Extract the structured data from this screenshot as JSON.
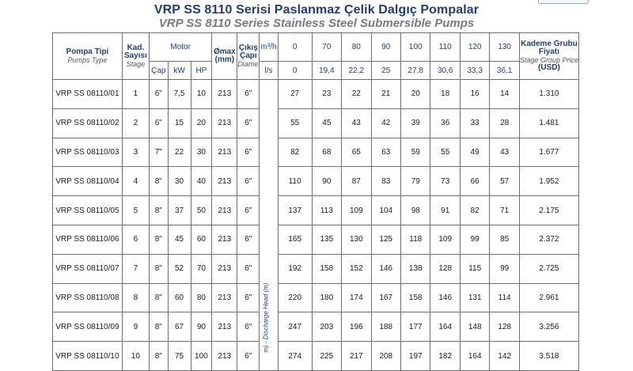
{
  "title_tr": "VRP SS 8110 Serisi Paslanmaz Çelik Dalgıç Pompalar",
  "title_en": "VRP SS 8110 Series Stainless Steel Submersible Pumps",
  "headers": {
    "pump_type": "Pompa Tipi",
    "pump_type_en": "Pumps Type",
    "stage_count_1": "Kad.",
    "stage_count_2": "Sayısı",
    "stage_count_en": "Stage",
    "motor": "Motor",
    "cap": "Çap",
    "kw": "kW",
    "hp": "HP",
    "omax_1": "Ømax",
    "omax_2": "(mm)",
    "discharge_1": "Çıkış",
    "discharge_2": "Çapı",
    "discharge_en": "Diameter",
    "unit_m3h": "m³/h",
    "unit_ls": "l/s",
    "head_label": "m) - Discharge Head (m)",
    "price_1": "Kademe Grubu",
    "price_2": "Fiyatı",
    "price_en": "Stage Group Price",
    "price_unit": "(USD)"
  },
  "flow_m3h": [
    "0",
    "70",
    "80",
    "90",
    "100",
    "110",
    "120",
    "130"
  ],
  "flow_ls": [
    "0",
    "19,4",
    "22,2",
    "25",
    "27,8",
    "30,6",
    "33,3",
    "36,1"
  ],
  "rows": [
    {
      "type": "VRP SS 08110/01",
      "stage": "1",
      "cap": "6\"",
      "kw": "7,5",
      "hp": "10",
      "omax": "213",
      "discharge": "6\"",
      "heads": [
        "27",
        "23",
        "22",
        "21",
        "20",
        "18",
        "16",
        "14"
      ],
      "price": "1.310"
    },
    {
      "type": "VRP SS 08110/02",
      "stage": "2",
      "cap": "6\"",
      "kw": "15",
      "hp": "20",
      "omax": "213",
      "discharge": "6\"",
      "heads": [
        "55",
        "45",
        "43",
        "42",
        "39",
        "36",
        "33",
        "28"
      ],
      "price": "1.481"
    },
    {
      "type": "VRP SS 08110/03",
      "stage": "3",
      "cap": "7\"",
      "kw": "22",
      "hp": "30",
      "omax": "213",
      "discharge": "6\"",
      "heads": [
        "82",
        "68",
        "65",
        "63",
        "59",
        "55",
        "49",
        "43"
      ],
      "price": "1.677"
    },
    {
      "type": "VRP SS 08110/04",
      "stage": "4",
      "cap": "8\"",
      "kw": "30",
      "hp": "40",
      "omax": "213",
      "discharge": "6\"",
      "heads": [
        "110",
        "90",
        "87",
        "83",
        "79",
        "73",
        "66",
        "57"
      ],
      "price": "1.952"
    },
    {
      "type": "VRP SS 08110/05",
      "stage": "5",
      "cap": "8\"",
      "kw": "37",
      "hp": "50",
      "omax": "213",
      "discharge": "6\"",
      "heads": [
        "137",
        "113",
        "109",
        "104",
        "98",
        "91",
        "82",
        "71"
      ],
      "price": "2.175"
    },
    {
      "type": "VRP SS 08110/06",
      "stage": "6",
      "cap": "8\"",
      "kw": "45",
      "hp": "60",
      "omax": "213",
      "discharge": "6\"",
      "heads": [
        "165",
        "135",
        "130",
        "125",
        "118",
        "109",
        "99",
        "85"
      ],
      "price": "2.372"
    },
    {
      "type": "VRP SS 08110/07",
      "stage": "7",
      "cap": "8\"",
      "kw": "52",
      "hp": "70",
      "omax": "213",
      "discharge": "6\"",
      "heads": [
        "192",
        "158",
        "152",
        "146",
        "138",
        "128",
        "115",
        "99"
      ],
      "price": "2.725"
    },
    {
      "type": "VRP SS 08110/08",
      "stage": "8",
      "cap": "8\"",
      "kw": "60",
      "hp": "80",
      "omax": "213",
      "discharge": "6\"",
      "heads": [
        "220",
        "180",
        "174",
        "167",
        "158",
        "146",
        "131",
        "114"
      ],
      "price": "2.961"
    },
    {
      "type": "VRP SS 08110/09",
      "stage": "9",
      "cap": "8\"",
      "kw": "67",
      "hp": "90",
      "omax": "213",
      "discharge": "6\"",
      "heads": [
        "247",
        "203",
        "196",
        "188",
        "177",
        "164",
        "148",
        "128"
      ],
      "price": "3.256"
    },
    {
      "type": "VRP SS 08110/10",
      "stage": "10",
      "cap": "8\"",
      "kw": "75",
      "hp": "100",
      "omax": "213",
      "discharge": "6\"",
      "heads": [
        "274",
        "225",
        "217",
        "208",
        "197",
        "182",
        "164",
        "142"
      ],
      "price": "3.518"
    }
  ]
}
